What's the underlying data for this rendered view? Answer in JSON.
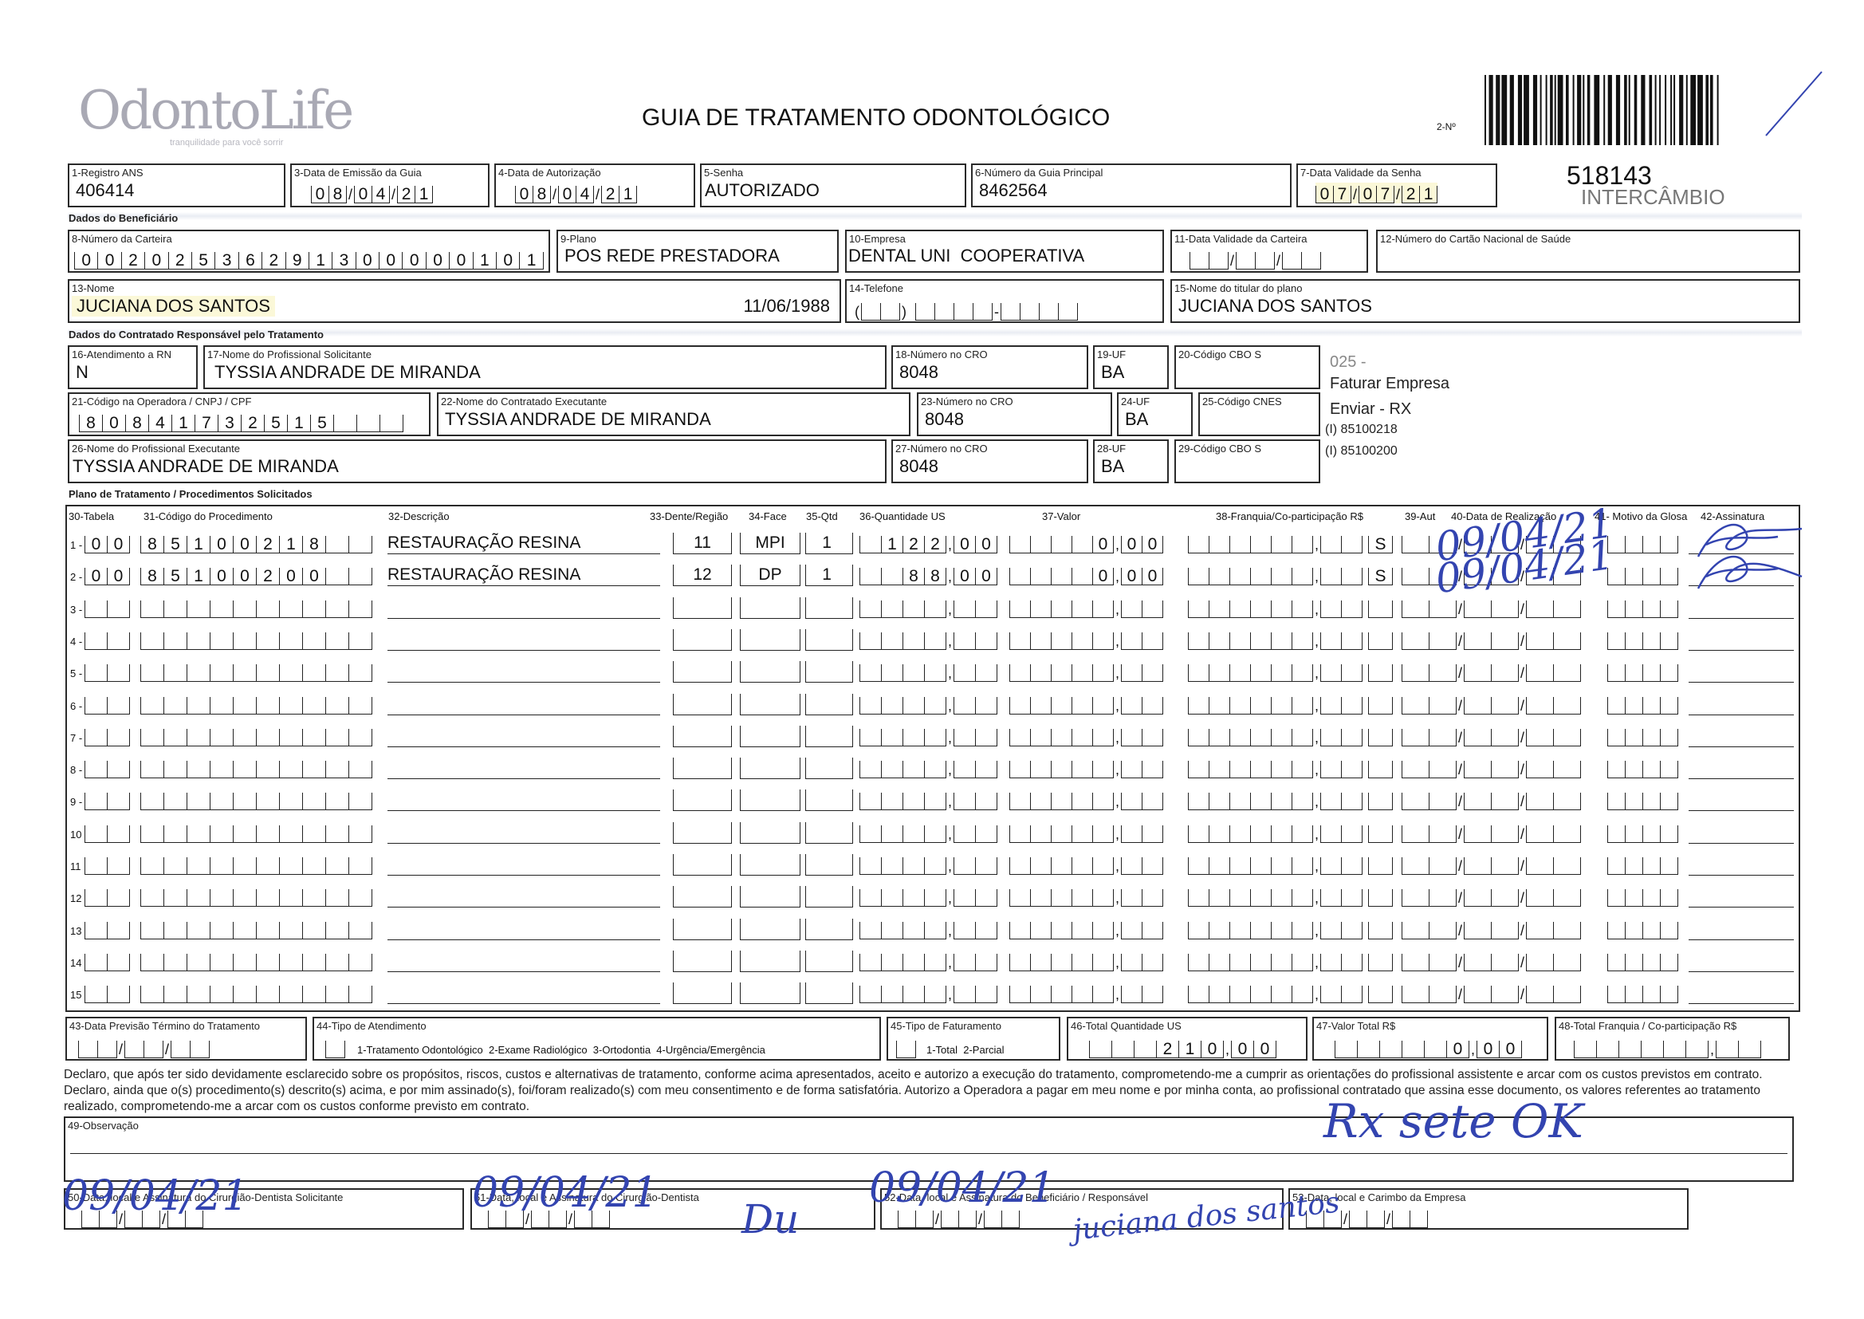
{
  "header": {
    "logo": "OdontoLife",
    "logo_tagline": "tranquilidade para você sorrir",
    "title": "GUIA DE TRATAMENTO ODONTOLÓGICO",
    "guia_number_label": "2-Nº",
    "guia_number": "518143",
    "guia_type": "INTERCÂMBIO"
  },
  "fields": {
    "registro_ans": {
      "label": "1-Registro ANS",
      "value": "406414"
    },
    "data_emissao": {
      "label": "3-Data de Emissão da Guia",
      "value": "08/04/21"
    },
    "data_autorizacao": {
      "label": "4-Data de Autorização",
      "value": "08/04/21"
    },
    "senha": {
      "label": "5-Senha",
      "value": "AUTORIZADO"
    },
    "guia_principal": {
      "label": "6-Número da Guia Principal",
      "value": "8462564"
    },
    "validade_senha": {
      "label": "7-Data Validade da Senha",
      "value": "07/07/21"
    },
    "numero_carteira": {
      "label": "8-Número da Carteira",
      "value": "00202536291300000101"
    },
    "plano": {
      "label": "9-Plano",
      "value": "POS REDE PRESTADORA"
    },
    "empresa": {
      "label": "10-Empresa",
      "value": "DENTAL UNI  COOPERATIVA"
    },
    "validade_carteira": {
      "label": "11-Data Validade da Carteira",
      "value": ""
    },
    "cartao_nacional": {
      "label": "12-Número do Cartão Nacional de Saúde",
      "value": ""
    },
    "nome": {
      "label": "13-Nome",
      "value": "JUCIANA DOS SANTOS",
      "birth_date": "11/06/1988"
    },
    "telefone": {
      "label": "14-Telefone",
      "value": ""
    },
    "titular": {
      "label": "15-Nome do titular do plano",
      "value": "JUCIANA DOS SANTOS"
    },
    "atendimento_rn": {
      "label": "16-Atendimento a RN",
      "value": "N"
    },
    "profissional_solicitante": {
      "label": "17-Nome do Profissional Solicitante",
      "value": "TYSSIA ANDRADE DE MIRANDA"
    },
    "cro_18": {
      "label": "18-Número no CRO",
      "value": "8048"
    },
    "uf_19": {
      "label": "19-UF",
      "value": "BA"
    },
    "cbo_20": {
      "label": "20-Código CBO S",
      "value": ""
    },
    "codigo_operadora": {
      "label": "21-Código na Operadora / CNPJ / CPF",
      "value": "80841732515"
    },
    "contratado_executante": {
      "label": "22-Nome do Contratado Executante",
      "value": "TYSSIA ANDRADE DE MIRANDA"
    },
    "cro_23": {
      "label": "23-Número no CRO",
      "value": "8048"
    },
    "uf_24": {
      "label": "24-UF",
      "value": "BA"
    },
    "cnes_25": {
      "label": "25-Código CNES",
      "value": ""
    },
    "profissional_executante": {
      "label": "26-Nome do Profissional Executante",
      "value": "TYSSIA ANDRADE DE MIRANDA"
    },
    "cro_27": {
      "label": "27-Número no CRO",
      "value": "8048"
    },
    "uf_28": {
      "label": "28-UF",
      "value": "BA"
    },
    "cbo_29": {
      "label": "29-Código CBO S",
      "value": ""
    }
  },
  "sections": {
    "beneficiario": "Dados do Beneficiário",
    "contratado": "Dados do Contratado Responsável pelo Tratamento",
    "plano": "Plano de Tratamento / Procedimentos Solicitados"
  },
  "side_notes": [
    "025 -",
    "Faturar Empresa",
    "Enviar - RX",
    "(I) 85100218",
    "(I) 85100200"
  ],
  "table": {
    "headers": {
      "tabela": "30-Tabela",
      "codigo": "31-Código do Procedimento",
      "descricao": "32-Descrição",
      "dente": "33-Dente/Região",
      "face": "34-Face",
      "qtd": "35-Qtd",
      "us": "36-Quantidade US",
      "valor": "37-Valor",
      "franquia": "38-Franquia/Co-participação R$",
      "aut": "39-Aut",
      "data": "40-Data de Realização",
      "motivo": "41- Motivo da Glosa",
      "assinatura": "42-Assinatura"
    },
    "rows": [
      {
        "num": "1 -",
        "tabela": "00",
        "codigo": "85100218",
        "descricao": "RESTAURAÇÃO RESINA",
        "dente": "11",
        "face": "MPI",
        "qtd": "1",
        "us": "122,00",
        "valor": "0,00",
        "franquia": "",
        "aut": "S",
        "data_handwritten": "09/04/21",
        "motivo": ""
      },
      {
        "num": "2 -",
        "tabela": "00",
        "codigo": "85100200",
        "descricao": "RESTAURAÇÃO RESINA",
        "dente": "12",
        "face": "DP",
        "qtd": "1",
        "us": "88,00",
        "valor": "0,00",
        "franquia": "",
        "aut": "S",
        "data_handwritten": "09/04/21",
        "motivo": ""
      },
      {
        "num": "3 -"
      },
      {
        "num": "4 -"
      },
      {
        "num": "5 -"
      },
      {
        "num": "6 -"
      },
      {
        "num": "7 -"
      },
      {
        "num": "8 -"
      },
      {
        "num": "9 -"
      },
      {
        "num": "10"
      },
      {
        "num": "11"
      },
      {
        "num": "12"
      },
      {
        "num": "13"
      },
      {
        "num": "14"
      },
      {
        "num": "15"
      }
    ]
  },
  "totals": {
    "previsao": {
      "label": "43-Data Previsão Término do Tratamento",
      "value": ""
    },
    "tipo_atendimento": {
      "label": "44-Tipo de Atendimento",
      "value": "",
      "options": "1-Tratamento Odontológico  2-Exame Radiológico  3-Ortodontia  4-Urgência/Emergência"
    },
    "tipo_faturamento": {
      "label": "45-Tipo de Faturamento",
      "value": "",
      "options": "1-Total  2-Parcial"
    },
    "total_us": {
      "label": "46-Total Quantidade US",
      "value": "210,00"
    },
    "valor_total": {
      "label": "47-Valor Total R$",
      "value": "0,00"
    },
    "total_franquia": {
      "label": "48-Total Franquia / Co-participação R$",
      "value": ""
    }
  },
  "declaration": "Declaro, que após ter sido devidamente esclarecido sobre os propósitos, riscos, custos e alternativas de tratamento, conforme acima apresentados, aceito e autorizo a execução do tratamento, comprometendo-me a cumprir as orientações do profissional assistente e arcar com os custos previstos em contrato. Declaro, ainda que o(s) procedimento(s) descrito(s) acima, e por mim assinado(s), foi/foram realizado(s) com meu consentimento e de forma satisfatória. Autorizo a Operadora a pagar em meu nome e por minha conta, ao profissional contratado que assina esse documento, os valores referentes ao tratamento realizado, comprometendo-me a arcar com os custos conforme previsto em contrato.",
  "observacao": {
    "label": "49-Observação",
    "handwritten": "Rx sete OK"
  },
  "signatures": {
    "solicitante": {
      "label": "50-Data, local e Assinatura do Cirurgião-Dentista Solicitante",
      "handwritten_date": "09/04/21"
    },
    "dentista": {
      "label": "51-Data, local e Assinatura do Cirurgião-Dentista",
      "handwritten_date": "09/04/21",
      "signature": "Du"
    },
    "beneficiario": {
      "label": "52-Data, local e Assinatura do Beneficiário / Responsável",
      "handwritten_date": "09/04/21",
      "signature": "juciana dos santos"
    },
    "empresa": {
      "label": "53-Data, local e Carimbo da Empresa"
    }
  },
  "colors": {
    "ink": "#3344b0",
    "highlight": "#fbf8d8",
    "logo": "#a9a9b4"
  }
}
